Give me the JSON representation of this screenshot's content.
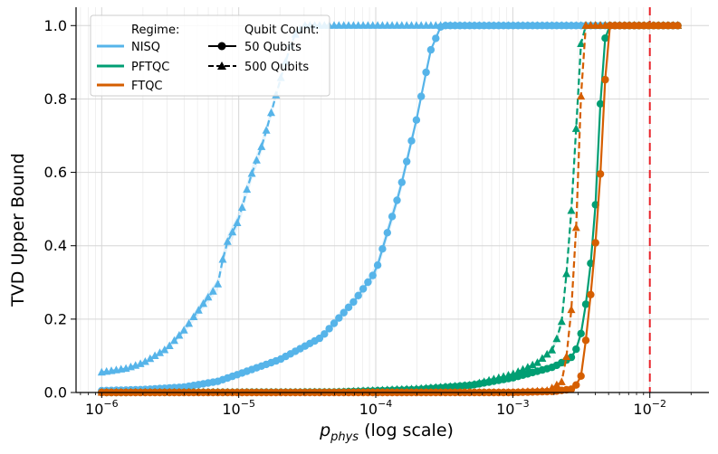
{
  "chart_data": {
    "type": "line",
    "xscale": "log",
    "xlim": [
      6.5e-07,
      0.027
    ],
    "ylim": [
      0,
      1.05
    ],
    "xlabel_main": "p",
    "xlabel_sub": "phys",
    "xlabel_suffix": " (log scale)",
    "ylabel": "TVD Upper Bound",
    "xticks": [
      {
        "value": 1e-06,
        "exp": "−6"
      },
      {
        "value": 1e-05,
        "exp": "−5"
      },
      {
        "value": 0.0001,
        "exp": "−4"
      },
      {
        "value": 0.001,
        "exp": "−3"
      },
      {
        "value": 0.01,
        "exp": "−2"
      }
    ],
    "yticks": [
      {
        "value": 0.0,
        "label": "0.0"
      },
      {
        "value": 0.2,
        "label": "0.2"
      },
      {
        "value": 0.4,
        "label": "0.4"
      },
      {
        "value": 0.6,
        "label": "0.6"
      },
      {
        "value": 0.8,
        "label": "0.8"
      },
      {
        "value": 1.0,
        "label": "1.0"
      }
    ],
    "threshold": {
      "value": 0.01,
      "color": "#e8232a"
    },
    "colors": {
      "NISQ": "#56b4e9",
      "PFTQC": "#009e73",
      "FTQC": "#d55e00"
    },
    "legend": {
      "position": "top-left",
      "regime_title": "Regime:",
      "regimes": [
        "NISQ",
        "PFTQC",
        "FTQC"
      ],
      "qubit_title": "Qubit Count:",
      "qubit_entries": [
        "50 Qubits",
        "500 Qubits"
      ]
    },
    "series": [
      {
        "name": "NISQ",
        "qubits": "50 Qubits",
        "regime": "NISQ",
        "marker": "circle",
        "dash": false,
        "points": [
          [
            1e-06,
            0.005
          ],
          [
            2e-06,
            0.008
          ],
          [
            4e-06,
            0.015
          ],
          [
            7e-06,
            0.03
          ],
          [
            1e-05,
            0.05
          ],
          [
            2e-05,
            0.09
          ],
          [
            4e-05,
            0.15
          ],
          [
            7e-05,
            0.25
          ],
          [
            0.0001,
            0.33
          ],
          [
            0.00015,
            0.55
          ],
          [
            0.0002,
            0.75
          ],
          [
            0.00025,
            0.93
          ],
          [
            0.0003,
            1.0
          ],
          [
            0.016,
            1.0
          ]
        ]
      },
      {
        "name": "NISQ",
        "qubits": "500 Qubits",
        "regime": "NISQ",
        "marker": "triangle",
        "dash": true,
        "points": [
          [
            1e-06,
            0.055
          ],
          [
            1.5e-06,
            0.065
          ],
          [
            2e-06,
            0.08
          ],
          [
            3e-06,
            0.12
          ],
          [
            4e-06,
            0.17
          ],
          [
            5e-06,
            0.22
          ],
          [
            6e-06,
            0.26
          ],
          [
            7e-06,
            0.29
          ],
          [
            8e-06,
            0.4
          ],
          [
            1e-05,
            0.47
          ],
          [
            1.2e-05,
            0.58
          ],
          [
            1.5e-05,
            0.68
          ],
          [
            2e-05,
            0.85
          ],
          [
            2.5e-05,
            0.97
          ],
          [
            3e-05,
            1.0
          ],
          [
            0.016,
            1.0
          ]
        ]
      },
      {
        "name": "PFTQC",
        "qubits": "50 Qubits",
        "regime": "PFTQC",
        "marker": "circle",
        "dash": false,
        "points": [
          [
            1e-06,
            0.0
          ],
          [
            5e-05,
            0.001
          ],
          [
            0.0002,
            0.008
          ],
          [
            0.0005,
            0.02
          ],
          [
            0.001,
            0.04
          ],
          [
            0.002,
            0.07
          ],
          [
            0.0028,
            0.1
          ],
          [
            0.0032,
            0.17
          ],
          [
            0.0036,
            0.3
          ],
          [
            0.004,
            0.5
          ],
          [
            0.0043,
            0.75
          ],
          [
            0.0046,
            0.95
          ],
          [
            0.005,
            1.0
          ],
          [
            0.016,
            1.0
          ]
        ]
      },
      {
        "name": "PFTQC",
        "qubits": "500 Qubits",
        "regime": "PFTQC",
        "marker": "triangle",
        "dash": true,
        "points": [
          [
            1e-06,
            0.0
          ],
          [
            5e-05,
            0.001
          ],
          [
            0.0002,
            0.01
          ],
          [
            0.0005,
            0.02
          ],
          [
            0.001,
            0.05
          ],
          [
            0.0015,
            0.08
          ],
          [
            0.002,
            0.12
          ],
          [
            0.0023,
            0.2
          ],
          [
            0.0026,
            0.42
          ],
          [
            0.0029,
            0.72
          ],
          [
            0.0032,
            1.0
          ],
          [
            0.016,
            1.0
          ]
        ]
      },
      {
        "name": "FTQC",
        "qubits": "50 Qubits",
        "regime": "FTQC",
        "marker": "circle",
        "dash": false,
        "points": [
          [
            1e-06,
            0.0
          ],
          [
            0.001,
            0.0
          ],
          [
            0.002,
            0.003
          ],
          [
            0.0028,
            0.01
          ],
          [
            0.0032,
            0.05
          ],
          [
            0.0036,
            0.22
          ],
          [
            0.004,
            0.4
          ],
          [
            0.0044,
            0.62
          ],
          [
            0.0047,
            0.84
          ],
          [
            0.005,
            1.0
          ],
          [
            0.016,
            1.0
          ]
        ]
      },
      {
        "name": "FTQC",
        "qubits": "500 Qubits",
        "regime": "FTQC",
        "marker": "triangle",
        "dash": true,
        "points": [
          [
            1e-06,
            0.0
          ],
          [
            0.001,
            0.0
          ],
          [
            0.0018,
            0.005
          ],
          [
            0.0023,
            0.03
          ],
          [
            0.0026,
            0.15
          ],
          [
            0.0029,
            0.45
          ],
          [
            0.0031,
            0.75
          ],
          [
            0.0033,
            1.0
          ],
          [
            0.016,
            1.0
          ]
        ]
      }
    ]
  }
}
